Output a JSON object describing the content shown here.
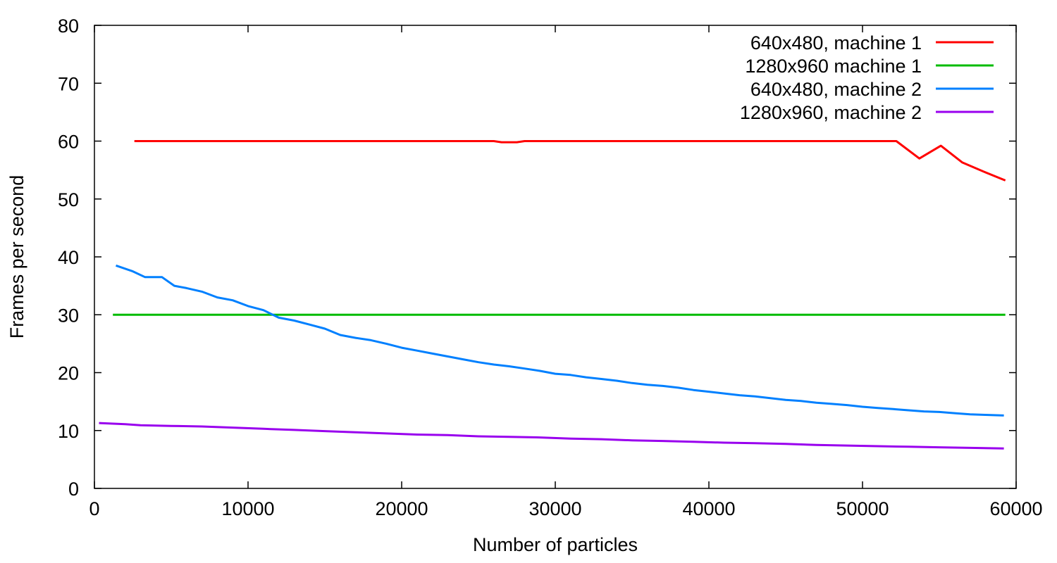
{
  "chart_data": {
    "type": "line",
    "title": "",
    "xlabel": "Number of particles",
    "ylabel": "Frames per second",
    "xlim": [
      0,
      60000
    ],
    "ylim": [
      0,
      80
    ],
    "x_ticks": [
      0,
      10000,
      20000,
      30000,
      40000,
      50000,
      60000
    ],
    "y_ticks": [
      0,
      10,
      20,
      30,
      40,
      50,
      60,
      70,
      80
    ],
    "x_tick_labels": [
      "0",
      "10000",
      "20000",
      "30000",
      "40000",
      "50000",
      "60000"
    ],
    "y_tick_labels": [
      "0",
      "10",
      "20",
      "30",
      "40",
      "50",
      "60",
      "70",
      "80"
    ],
    "grid": false,
    "legend_position": "top-right",
    "series": [
      {
        "name": "640x480, machine 1",
        "color": "#ff0000",
        "points": [
          [
            2600,
            60
          ],
          [
            10000,
            60
          ],
          [
            20000,
            60
          ],
          [
            26000,
            60
          ],
          [
            26500,
            59.8
          ],
          [
            27500,
            59.8
          ],
          [
            28000,
            60
          ],
          [
            35000,
            60
          ],
          [
            45000,
            60
          ],
          [
            52200,
            60
          ],
          [
            53700,
            57
          ],
          [
            55100,
            59.2
          ],
          [
            56500,
            56.3
          ],
          [
            58000,
            54.6
          ],
          [
            59300,
            53.2
          ]
        ]
      },
      {
        "name": "1280x960 machine 1",
        "color": "#00bb00",
        "points": [
          [
            1200,
            30
          ],
          [
            10000,
            30
          ],
          [
            20000,
            30
          ],
          [
            30000,
            30
          ],
          [
            40000,
            30
          ],
          [
            50000,
            30
          ],
          [
            59300,
            30
          ]
        ]
      },
      {
        "name": "640x480, machine 2",
        "color": "#0080ff",
        "points": [
          [
            1400,
            38.5
          ],
          [
            2500,
            37.5
          ],
          [
            3300,
            36.5
          ],
          [
            4400,
            36.5
          ],
          [
            5200,
            35
          ],
          [
            6000,
            34.6
          ],
          [
            7000,
            34
          ],
          [
            8000,
            33
          ],
          [
            9000,
            32.5
          ],
          [
            10000,
            31.5
          ],
          [
            11000,
            30.8
          ],
          [
            12000,
            29.5
          ],
          [
            13000,
            29
          ],
          [
            14000,
            28.3
          ],
          [
            15000,
            27.6
          ],
          [
            16000,
            26.5
          ],
          [
            17000,
            26
          ],
          [
            18000,
            25.6
          ],
          [
            19000,
            25
          ],
          [
            20000,
            24.3
          ],
          [
            21000,
            23.8
          ],
          [
            22000,
            23.3
          ],
          [
            23000,
            22.8
          ],
          [
            24000,
            22.3
          ],
          [
            25000,
            21.8
          ],
          [
            26000,
            21.4
          ],
          [
            27000,
            21.1
          ],
          [
            28000,
            20.7
          ],
          [
            29000,
            20.3
          ],
          [
            30000,
            19.8
          ],
          [
            31000,
            19.6
          ],
          [
            32000,
            19.2
          ],
          [
            33000,
            18.9
          ],
          [
            34000,
            18.6
          ],
          [
            35000,
            18.2
          ],
          [
            36000,
            17.9
          ],
          [
            37000,
            17.7
          ],
          [
            38000,
            17.4
          ],
          [
            39000,
            17
          ],
          [
            40000,
            16.7
          ],
          [
            41000,
            16.4
          ],
          [
            42000,
            16.1
          ],
          [
            43000,
            15.9
          ],
          [
            44000,
            15.6
          ],
          [
            45000,
            15.3
          ],
          [
            46000,
            15.1
          ],
          [
            47000,
            14.8
          ],
          [
            48000,
            14.6
          ],
          [
            49000,
            14.4
          ],
          [
            50000,
            14.1
          ],
          [
            51000,
            13.9
          ],
          [
            52000,
            13.7
          ],
          [
            53000,
            13.5
          ],
          [
            54000,
            13.3
          ],
          [
            55000,
            13.2
          ],
          [
            56000,
            13
          ],
          [
            57000,
            12.8
          ],
          [
            58000,
            12.7
          ],
          [
            59200,
            12.6
          ]
        ]
      },
      {
        "name": "1280x960, machine 2",
        "color": "#9900ee",
        "points": [
          [
            300,
            11.3
          ],
          [
            2000,
            11.1
          ],
          [
            3000,
            10.9
          ],
          [
            5000,
            10.8
          ],
          [
            7000,
            10.7
          ],
          [
            9000,
            10.5
          ],
          [
            11000,
            10.3
          ],
          [
            13000,
            10.1
          ],
          [
            15000,
            9.9
          ],
          [
            17000,
            9.7
          ],
          [
            19000,
            9.5
          ],
          [
            21000,
            9.3
          ],
          [
            23000,
            9.2
          ],
          [
            25000,
            9
          ],
          [
            27000,
            8.9
          ],
          [
            29000,
            8.8
          ],
          [
            31000,
            8.6
          ],
          [
            33000,
            8.5
          ],
          [
            35000,
            8.3
          ],
          [
            37000,
            8.2
          ],
          [
            39000,
            8.05
          ],
          [
            41000,
            7.9
          ],
          [
            43000,
            7.8
          ],
          [
            45000,
            7.7
          ],
          [
            47000,
            7.5
          ],
          [
            49000,
            7.4
          ],
          [
            51000,
            7.3
          ],
          [
            53000,
            7.2
          ],
          [
            55000,
            7.1
          ],
          [
            57000,
            7
          ],
          [
            59200,
            6.9
          ]
        ]
      }
    ]
  }
}
